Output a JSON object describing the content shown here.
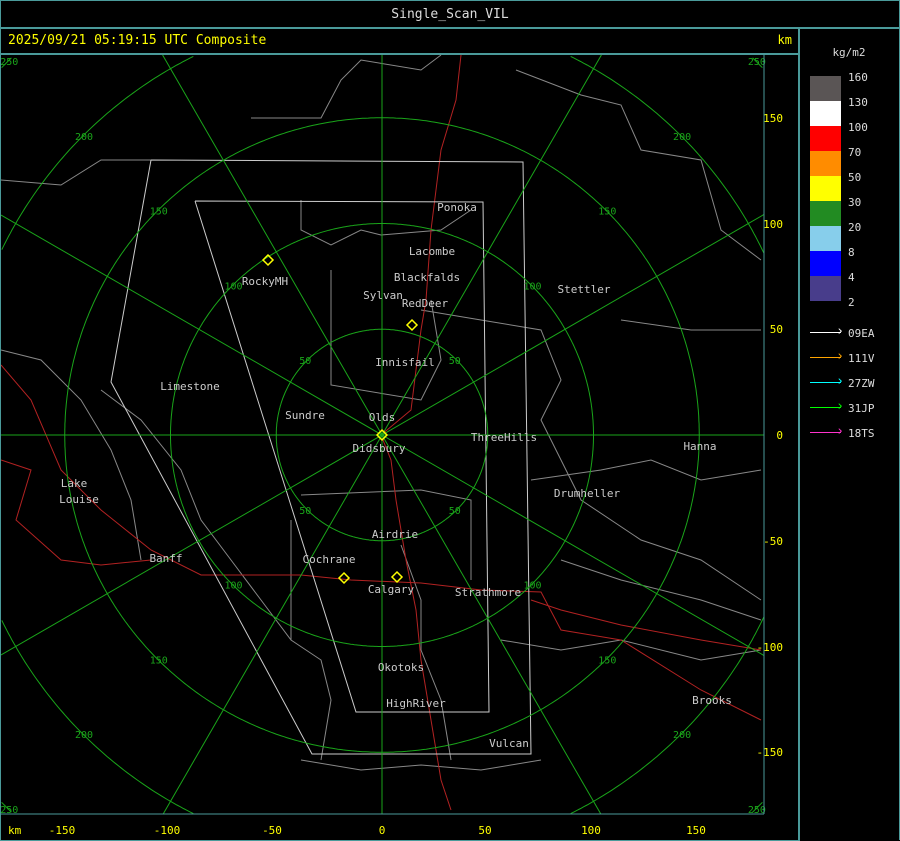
{
  "window": {
    "title": "Single_Scan_VIL"
  },
  "header": {
    "timestamp": "2025/09/21 05:19:15 UTC Composite",
    "unit_top": "km"
  },
  "axes": {
    "x_unit": "km",
    "x_ticks": [
      "-150",
      "-100",
      "-50",
      "0",
      "50",
      "100",
      "150"
    ],
    "y_ticks": [
      "150",
      "100",
      "50",
      "0",
      "-50",
      "-100",
      "-150"
    ],
    "ring_labels": [
      "50",
      "100",
      "150",
      "200",
      "250"
    ]
  },
  "cities": [
    "Ponoka",
    "Lacombe",
    "Blackfalds",
    "Sylvan",
    "RedDeer",
    "RockyMH",
    "Stettler",
    "Innisfail",
    "Limestone",
    "Sundre",
    "Olds",
    "Didsbury",
    "ThreeHills",
    "Hanna",
    "Drumheller",
    "Lake",
    "Louise",
    "Airdrie",
    "Banff",
    "Cochrane",
    "Calgary",
    "Strathmore",
    "Okotoks",
    "HighRiver",
    "Brooks",
    "Vulcan"
  ],
  "legend": {
    "unit": "kg/m2",
    "levels": [
      {
        "label": "160",
        "color": "#5a5555"
      },
      {
        "label": "130",
        "color": "#ffffff"
      },
      {
        "label": "100",
        "color": "#ff0000"
      },
      {
        "label": "70",
        "color": "#ff8c00"
      },
      {
        "label": "50",
        "color": "#ffff00"
      },
      {
        "label": "30",
        "color": "#228b22"
      },
      {
        "label": "20",
        "color": "#87ceeb"
      },
      {
        "label": "8",
        "color": "#0000ff"
      },
      {
        "label": "4",
        "color": "#483d8b"
      }
    ],
    "bottom_label": "2",
    "radars": [
      {
        "label": "09EA",
        "color": "#ffffff"
      },
      {
        "label": "111V",
        "color": "#ffa500"
      },
      {
        "label": "27ZW",
        "color": "#00ffff"
      },
      {
        "label": "31JP",
        "color": "#00ff00"
      },
      {
        "label": "18TS",
        "color": "#ff33cc"
      }
    ]
  }
}
